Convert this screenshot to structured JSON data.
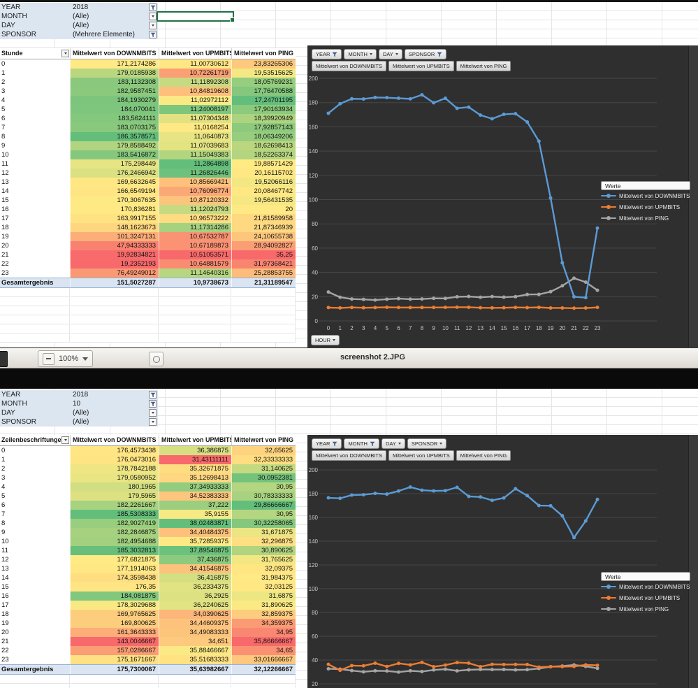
{
  "viewer": {
    "zoom_level": "100%",
    "filename": "screenshot 2.JPG"
  },
  "colors": {
    "series": [
      "#5B9BD5",
      "#ED7D31",
      "#A5A5A5"
    ],
    "scale_red": "#F8696B",
    "scale_yellow": "#FFEB84",
    "scale_green": "#63BE7B",
    "chart_bg": "#2f2f2f",
    "filter_bg": "#dce6f1",
    "total_bg": "#dbe5f1"
  },
  "panels": [
    {
      "filters": [
        {
          "label": "YEAR",
          "value": "2018",
          "icon": "funnel"
        },
        {
          "label": "MONTH",
          "value": "(Alle)",
          "icon": "caret"
        },
        {
          "label": "DAY",
          "value": "(Alle)",
          "icon": "caret"
        },
        {
          "label": "SPONSOR",
          "value": "(Mehrere Elemente)",
          "icon": "funnel"
        }
      ],
      "table": {
        "row_header": "Stunde",
        "columns": [
          "Mittelwert von DOWNMBITS",
          "Mittelwert von UPMBITS",
          "Mittelwert von PING"
        ],
        "green_high": [
          true,
          true,
          false
        ],
        "rows": [
          {
            "label": "0",
            "values": [
              "171,2174286",
              "11,00730612",
              "23,83265306"
            ]
          },
          {
            "label": "1",
            "values": [
              "179,0185938",
              "10,72261719",
              "19,53515625"
            ]
          },
          {
            "label": "2",
            "values": [
              "183,1132308",
              "11,11892308",
              "18,05769231"
            ]
          },
          {
            "label": "3",
            "values": [
              "182,9587451",
              "10,84819608",
              "17,76470588"
            ]
          },
          {
            "label": "4",
            "values": [
              "184,1930279",
              "11,02972112",
              "17,24701195"
            ]
          },
          {
            "label": "5",
            "values": [
              "184,070041",
              "11,24008197",
              "17,90163934"
            ]
          },
          {
            "label": "6",
            "values": [
              "183,5624111",
              "11,07304348",
              "18,39920949"
            ]
          },
          {
            "label": "7",
            "values": [
              "183,0703175",
              "11,0168254",
              "17,92857143"
            ]
          },
          {
            "label": "8",
            "values": [
              "186,3578571",
              "11,0640873",
              "18,06349206"
            ]
          },
          {
            "label": "9",
            "values": [
              "179,8588492",
              "11,07039683",
              "18,62698413"
            ]
          },
          {
            "label": "10",
            "values": [
              "183,5416872",
              "11,15049383",
              "18,52263374"
            ]
          },
          {
            "label": "11",
            "values": [
              "175,298449",
              "11,2864898",
              "19,88571429"
            ]
          },
          {
            "label": "12",
            "values": [
              "176,2466942",
              "11,26826446",
              "20,16115702"
            ]
          },
          {
            "label": "13",
            "values": [
              "169,6632645",
              "10,85669421",
              "19,52066116"
            ]
          },
          {
            "label": "14",
            "values": [
              "166,6549194",
              "10,76096774",
              "20,08467742"
            ]
          },
          {
            "label": "15",
            "values": [
              "170,3067635",
              "10,87120332",
              "19,56431535"
            ]
          },
          {
            "label": "16",
            "values": [
              "170,836281",
              "11,12024793",
              "20"
            ]
          },
          {
            "label": "17",
            "values": [
              "163,9917155",
              "10,96573222",
              "21,81589958"
            ]
          },
          {
            "label": "18",
            "values": [
              "148,1623673",
              "11,17314286",
              "21,87346939"
            ]
          },
          {
            "label": "19",
            "values": [
              "101,3247131",
              "10,67532787",
              "24,10655738"
            ]
          },
          {
            "label": "20",
            "values": [
              "47,94333333",
              "10,67189873",
              "28,94092827"
            ]
          },
          {
            "label": "21",
            "values": [
              "19,92834821",
              "10,51053571",
              "35,25"
            ]
          },
          {
            "label": "22",
            "values": [
              "19,2352193",
              "10,64881579",
              "31,97368421"
            ]
          },
          {
            "label": "23",
            "values": [
              "76,49249012",
              "11,14640316",
              "25,28853755"
            ]
          }
        ],
        "total_label": "Gesamtergebnis",
        "total_values": [
          "151,5027287",
          "10,9738673",
          "21,31189547"
        ]
      },
      "chart": {
        "field_buttons": [
          {
            "label": "YEAR",
            "icon": "funnel"
          },
          {
            "label": "MONTH",
            "icon": "caret"
          },
          {
            "label": "DAY",
            "icon": "caret"
          },
          {
            "label": "SPONSOR",
            "icon": "funnel"
          }
        ],
        "series_buttons": [
          "Mittelwert von DOWNMBITS",
          "Mittelwert von UPMBITS",
          "Mittelwert von PING"
        ],
        "legend_title": "Werte",
        "legend_items": [
          "Mittelwert von DOWNMBITS",
          "Mittelwert von UPMBITS",
          "Mittelwert von PING"
        ],
        "axis_button": "HOUR",
        "y_ticks": [
          200,
          180,
          160,
          140,
          120,
          100,
          80,
          60,
          40,
          20,
          0
        ],
        "x_ticks": [
          "0",
          "1",
          "2",
          "3",
          "4",
          "5",
          "6",
          "7",
          "8",
          "9",
          "10",
          "11",
          "12",
          "13",
          "14",
          "15",
          "16",
          "17",
          "18",
          "19",
          "20",
          "21",
          "22",
          "23"
        ]
      }
    },
    {
      "filters": [
        {
          "label": "YEAR",
          "value": "2018",
          "icon": "funnel"
        },
        {
          "label": "MONTH",
          "value": "10",
          "icon": "funnel"
        },
        {
          "label": "DAY",
          "value": "(Alle)",
          "icon": "caret"
        },
        {
          "label": "SPONSOR",
          "value": "(Alle)",
          "icon": "caret"
        }
      ],
      "table": {
        "row_header": "Zeilenbeschriftungen",
        "columns": [
          "Mittelwert von DOWNMBITS",
          "Mittelwert von UPMBITS",
          "Mittelwert von PING"
        ],
        "green_high": [
          true,
          true,
          false
        ],
        "rows": [
          {
            "label": "0",
            "values": [
              "176,4573438",
              "36,386875",
              "32,65625"
            ]
          },
          {
            "label": "1",
            "values": [
              "176,0473016",
              "31,43111111",
              "32,33333333"
            ]
          },
          {
            "label": "2",
            "values": [
              "178,7842188",
              "35,32671875",
              "31,140625"
            ]
          },
          {
            "label": "3",
            "values": [
              "179,0580952",
              "35,12698413",
              "30,0952381"
            ]
          },
          {
            "label": "4",
            "values": [
              "180,1965",
              "37,34933333",
              "30,95"
            ]
          },
          {
            "label": "5",
            "values": [
              "179,5965",
              "34,52383333",
              "30,78333333"
            ]
          },
          {
            "label": "6",
            "values": [
              "182,2261667",
              "37,222",
              "29,86666667"
            ]
          },
          {
            "label": "7",
            "values": [
              "185,5308333",
              "35,9155",
              "30,95"
            ]
          },
          {
            "label": "8",
            "values": [
              "182,9027419",
              "38,02483871",
              "30,32258065"
            ]
          },
          {
            "label": "9",
            "values": [
              "182,2846875",
              "34,40484375",
              "31,671875"
            ]
          },
          {
            "label": "10",
            "values": [
              "182,4954688",
              "35,72859375",
              "32,296875"
            ]
          },
          {
            "label": "11",
            "values": [
              "185,3032813",
              "37,89546875",
              "30,890625"
            ]
          },
          {
            "label": "12",
            "values": [
              "177,6821875",
              "37,436875",
              "31,765625"
            ]
          },
          {
            "label": "13",
            "values": [
              "177,1914063",
              "34,41546875",
              "32,09375"
            ]
          },
          {
            "label": "14",
            "values": [
              "174,3598438",
              "36,416875",
              "31,984375"
            ]
          },
          {
            "label": "15",
            "values": [
              "176,35",
              "36,2334375",
              "32,03125"
            ]
          },
          {
            "label": "16",
            "values": [
              "184,081875",
              "36,2925",
              "31,6875"
            ]
          },
          {
            "label": "17",
            "values": [
              "178,3029688",
              "36,2240625",
              "31,890625"
            ]
          },
          {
            "label": "18",
            "values": [
              "169,9765625",
              "34,0390625",
              "32,859375"
            ]
          },
          {
            "label": "19",
            "values": [
              "169,800625",
              "34,44609375",
              "34,359375"
            ]
          },
          {
            "label": "20",
            "values": [
              "161,3643333",
              "34,49083333",
              "34,95"
            ]
          },
          {
            "label": "21",
            "values": [
              "143,0046667",
              "34,651",
              "35,86666667"
            ]
          },
          {
            "label": "22",
            "values": [
              "157,0286667",
              "35,88466667",
              "34,65"
            ]
          },
          {
            "label": "23",
            "values": [
              "175,1671667",
              "35,51683333",
              "33,01666667"
            ]
          }
        ],
        "total_label": "Gesamtergebnis",
        "total_values": [
          "175,7300067",
          "35,63982667",
          "32,12266667"
        ]
      },
      "chart": {
        "field_buttons": [
          {
            "label": "YEAR",
            "icon": "funnel"
          },
          {
            "label": "MONTH",
            "icon": "funnel"
          },
          {
            "label": "DAY",
            "icon": "caret"
          },
          {
            "label": "SPONSOR",
            "icon": "caret"
          }
        ],
        "series_buttons": [
          "Mittelwert von DOWNMBITS",
          "Mittelwert von UPMBITS",
          "Mittelwert von PING"
        ],
        "legend_title": "Werte",
        "legend_items": [
          "Mittelwert von DOWNMBITS",
          "Mittelwert von UPMBITS",
          "Mittelwert von PING"
        ],
        "axis_button": null,
        "y_ticks": [
          200,
          180,
          160,
          140,
          120,
          100,
          80,
          60,
          40,
          20
        ],
        "x_ticks": []
      }
    }
  ]
}
